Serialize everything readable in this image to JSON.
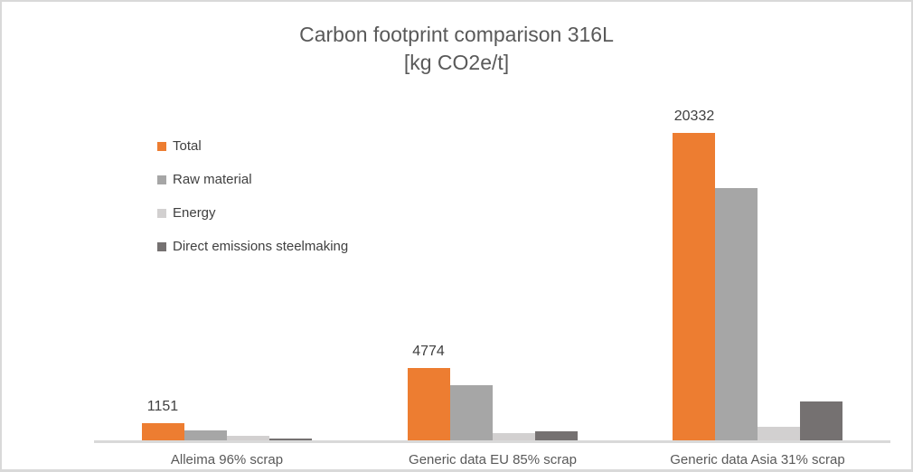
{
  "title": {
    "line1": "Carbon footprint comparison 316L",
    "line2": "[kg CO2e/t]"
  },
  "chart_data": {
    "type": "bar",
    "title": "Carbon footprint comparison 316L",
    "subtitle": "[kg CO2e/t]",
    "unit": "kg CO2e/t",
    "categories": [
      "Alleima 96% scrap",
      "Generic data EU 85% scrap",
      "Generic data Asia 31% scrap"
    ],
    "series": [
      {
        "name": "Total",
        "color": "#ED7D31",
        "values": [
          1151,
          4774,
          20332
        ],
        "data_labels": [
          "1151",
          "4774",
          "20332"
        ]
      },
      {
        "name": "Raw material",
        "color": "#A6A6A6",
        "values": [
          640,
          3630,
          16700
        ]
      },
      {
        "name": "Energy",
        "color": "#D2D0D0",
        "values": [
          280,
          490,
          900
        ]
      },
      {
        "name": "Direct emissions steelmaking",
        "color": "#757171",
        "values": [
          120,
          570,
          2600
        ]
      }
    ],
    "value_axis": {
      "min": 0,
      "max": 20332,
      "visible": false,
      "gridlines": false
    },
    "category_axis": {
      "line_color": "#D9D9D9"
    },
    "legend": {
      "position": "top-left",
      "orientation": "vertical"
    },
    "notes": "Only the Total series shows data labels (1151, 4774, 20332); values for Raw material, Energy and Direct emissions steelmaking are estimated from bar heights."
  },
  "colors": {
    "accent_orange": "#ED7D31",
    "gray_raw_material": "#A6A6A6",
    "gray_energy": "#D2D0D0",
    "gray_direct_emissions": "#757171",
    "title_text": "#595959",
    "category_label_text": "#595959",
    "data_label_text": "#404040",
    "legend_text": "#404040",
    "axis_line": "#D9D9D9",
    "frame_border": "#D9D9D9",
    "background": "#FFFFFF"
  }
}
